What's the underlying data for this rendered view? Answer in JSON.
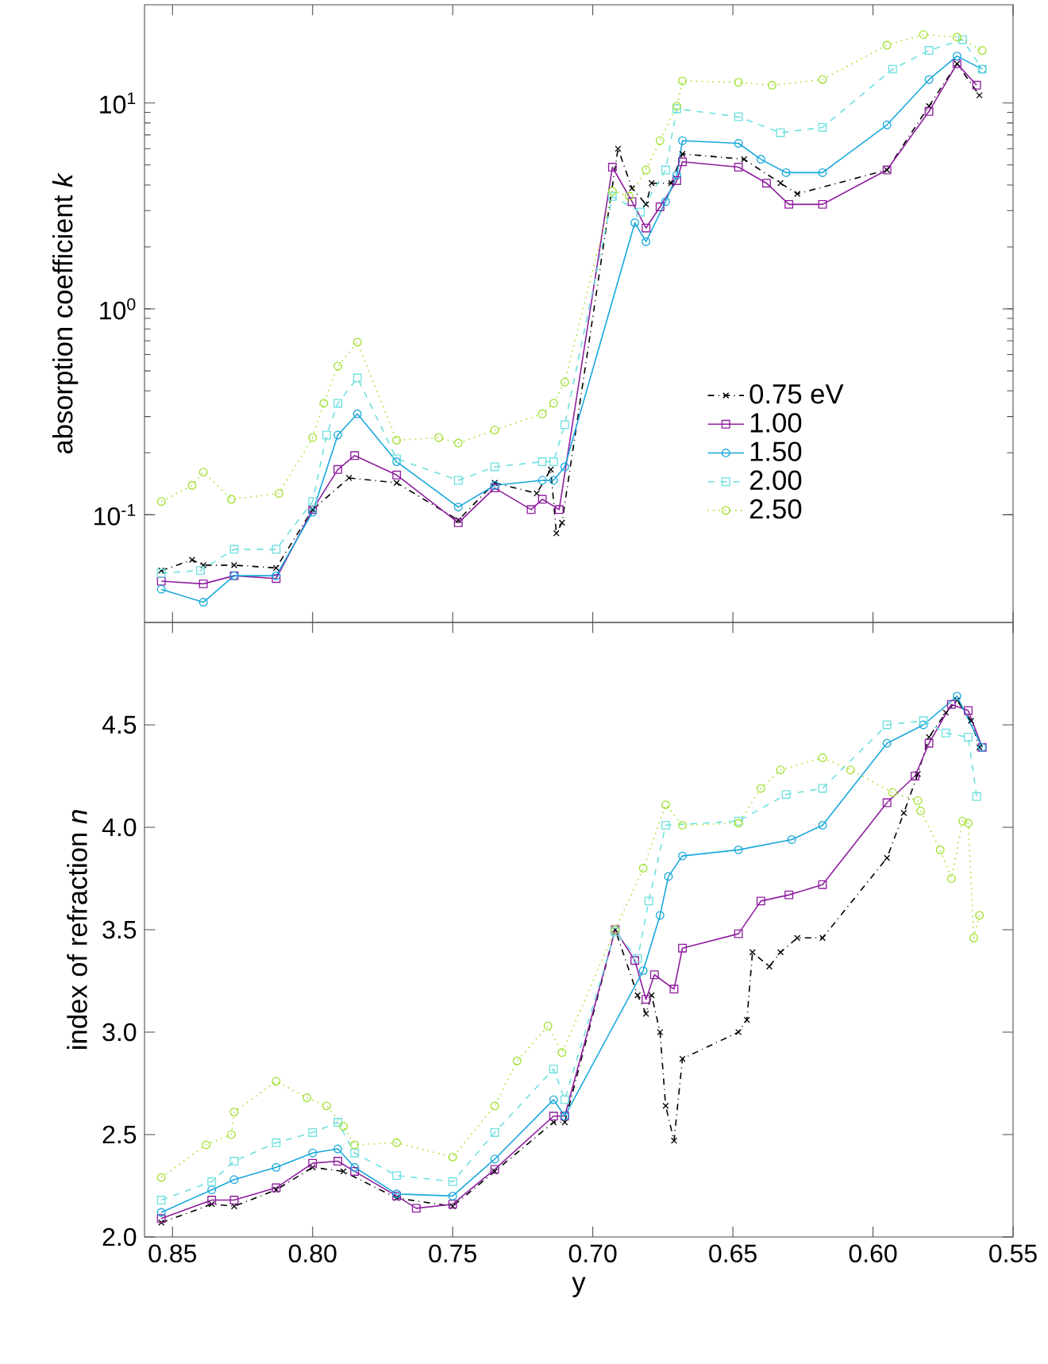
{
  "chart_data": [
    {
      "type": "line",
      "ylabel": "absorption coefficient *k*",
      "log": "y",
      "legend": "right",
      "tick_labels": "y",
      "xlim": [
        0.86,
        0.55
      ],
      "ylim": [
        0.03,
        30
      ],
      "xticks": [
        {
          "value": 0.85,
          "label": null
        },
        {
          "value": 0.8,
          "label": null
        },
        {
          "value": 0.75,
          "label": null
        },
        {
          "value": 0.7,
          "label": null
        },
        {
          "value": 0.65,
          "label": null
        },
        {
          "value": 0.6,
          "label": null
        },
        {
          "value": 0.55,
          "label": null
        }
      ],
      "yticks": [
        {
          "value": 0.1,
          "label": "10$^{-1}$"
        },
        {
          "value": 1,
          "label": "10$^{0}$"
        },
        {
          "value": 10,
          "label": "10$^{1}$"
        }
      ],
      "series": [
        {
          "name": "0.75 eV",
          "color": "#000000",
          "marker": "cross",
          "line_style": "dashdot",
          "x": [
            0.854,
            0.843,
            0.839,
            0.828,
            0.813,
            0.8,
            0.787,
            0.77,
            0.748,
            0.735,
            0.72,
            0.715,
            0.713,
            0.711,
            0.691,
            0.686,
            0.681,
            0.679,
            0.672,
            0.668,
            0.646,
            0.633,
            0.627,
            0.595,
            0.58,
            0.57,
            0.562
          ],
          "values": [
            0.0536,
            0.0604,
            0.0569,
            0.0569,
            0.0552,
            0.106,
            0.151,
            0.143,
            0.0942,
            0.143,
            0.127,
            0.166,
            0.0813,
            0.0915,
            6.0,
            3.85,
            3.22,
            4.08,
            4.08,
            5.66,
            5.33,
            4.08,
            3.62,
            4.73,
            9.66,
            15.5,
            10.9
          ]
        },
        {
          "name": "1.00",
          "color": "#8e1f9e",
          "marker": "square",
          "line_style": "solid",
          "x": [
            0.854,
            0.839,
            0.828,
            0.813,
            0.8,
            0.791,
            0.785,
            0.77,
            0.748,
            0.735,
            0.722,
            0.718,
            0.712,
            0.693,
            0.686,
            0.681,
            0.676,
            0.67,
            0.668,
            0.648,
            0.638,
            0.63,
            0.618,
            0.595,
            0.58,
            0.57,
            0.563
          ],
          "values": [
            0.0476,
            0.0462,
            0.0506,
            0.049,
            0.106,
            0.166,
            0.194,
            0.156,
            0.0915,
            0.135,
            0.106,
            0.119,
            0.106,
            4.88,
            3.32,
            2.47,
            3.13,
            4.2,
            5.18,
            4.88,
            4.08,
            3.22,
            3.22,
            4.73,
            9.1,
            15.5,
            12.2
          ]
        },
        {
          "name": "1.50",
          "color": "#1aa8dc",
          "marker": "circle",
          "line_style": "solid",
          "x": [
            0.854,
            0.839,
            0.828,
            0.813,
            0.8,
            0.791,
            0.784,
            0.77,
            0.748,
            0.735,
            0.718,
            0.714,
            0.71,
            0.693,
            0.685,
            0.681,
            0.674,
            0.67,
            0.668,
            0.648,
            0.64,
            0.631,
            0.618,
            0.595,
            0.58,
            0.57,
            0.561
          ],
          "values": [
            0.0435,
            0.0376,
            0.0506,
            0.0506,
            0.103,
            0.244,
            0.309,
            0.181,
            0.109,
            0.139,
            0.147,
            0.147,
            0.171,
            null,
            2.62,
            2.12,
            3.32,
            4.46,
            6.56,
            6.37,
            5.33,
            4.59,
            4.59,
            7.83,
            13.0,
            16.9,
            14.6
          ]
        },
        {
          "name": "2.00",
          "color": "#70e0e0",
          "marker": "square",
          "line_style": "dashed",
          "x": [
            0.854,
            0.84,
            0.828,
            0.813,
            0.8,
            0.795,
            0.791,
            0.784,
            0.77,
            0.748,
            0.735,
            0.718,
            0.714,
            0.71,
            0.693,
            0.683,
            0.674,
            0.67,
            0.648,
            0.633,
            0.618,
            0.593,
            0.58,
            0.568,
            0.561
          ],
          "values": [
            0.052,
            0.0536,
            0.068,
            0.068,
            0.116,
            0.244,
            0.348,
            0.462,
            0.187,
            0.147,
            0.171,
            0.181,
            0.181,
            0.274,
            3.52,
            2.95,
            4.73,
            9.38,
            8.57,
            7.17,
            7.61,
            14.6,
            18.0,
            20.3,
            14.6
          ]
        },
        {
          "name": "2.50",
          "color": "#a0e030",
          "marker": "circle",
          "line_style": "dotted",
          "x": [
            0.854,
            0.843,
            0.839,
            0.829,
            0.812,
            0.8,
            0.796,
            0.791,
            0.784,
            0.77,
            0.755,
            0.748,
            0.735,
            0.718,
            0.714,
            0.71,
            0.693,
            0.687,
            0.681,
            0.676,
            0.67,
            0.668,
            0.648,
            0.636,
            0.618,
            0.595,
            0.582,
            0.57,
            0.561
          ],
          "values": [
            0.116,
            0.139,
            0.161,
            0.119,
            0.127,
            0.237,
            0.348,
            0.527,
            0.689,
            0.23,
            0.237,
            0.223,
            0.258,
            0.309,
            0.348,
            0.441,
            3.73,
            3.52,
            4.73,
            6.56,
            9.66,
            12.8,
            12.6,
            12.2,
            13.0,
            19.1,
            21.5,
            20.9,
            18.0
          ]
        }
      ]
    },
    {
      "type": "line",
      "xlabel": "y",
      "ylabel": "index of refraction *n*",
      "xlim": [
        0.86,
        0.55
      ],
      "ylim": [
        2.0,
        5.0
      ],
      "xticks": [
        {
          "value": 0.85,
          "label": "0.85"
        },
        {
          "value": 0.8,
          "label": "0.80"
        },
        {
          "value": 0.75,
          "label": "0.75"
        },
        {
          "value": 0.7,
          "label": "0.70"
        },
        {
          "value": 0.65,
          "label": "0.65"
        },
        {
          "value": 0.6,
          "label": "0.60"
        },
        {
          "value": 0.55,
          "label": "0.55"
        }
      ],
      "yticks": [
        {
          "value": 2,
          "label": "2.0"
        },
        {
          "value": 2.5,
          "label": "2.5"
        },
        {
          "value": 3,
          "label": "3.0"
        },
        {
          "value": 3.5,
          "label": "3.5"
        },
        {
          "value": 4,
          "label": "4.0"
        },
        {
          "value": 4.5,
          "label": "4.5"
        }
      ],
      "series": [
        {
          "color": "#000000",
          "marker": "cross",
          "line_style": "dashdot",
          "x": [
            0.854,
            0.836,
            0.828,
            0.813,
            0.8,
            0.789,
            0.77,
            0.75,
            0.735,
            0.714,
            0.71,
            0.692,
            0.684,
            0.681,
            0.679,
            0.676,
            0.674,
            0.671,
            0.668,
            0.648,
            0.645,
            0.643,
            0.637,
            0.633,
            0.627,
            0.618,
            0.595,
            0.589,
            0.584,
            0.58,
            0.574,
            0.57,
            0.565,
            0.562
          ],
          "values": [
            2.07,
            2.16,
            2.15,
            2.23,
            2.34,
            2.32,
            2.19,
            2.15,
            2.32,
            2.56,
            2.56,
            3.5,
            3.18,
            3.09,
            3.18,
            3.0,
            2.64,
            2.47,
            2.87,
            3.0,
            3.06,
            3.39,
            3.32,
            3.39,
            3.46,
            3.46,
            3.85,
            4.07,
            4.26,
            4.44,
            4.56,
            4.62,
            4.52,
            4.39
          ]
        },
        {
          "color": "#8e1f9e",
          "marker": "square",
          "line_style": "solid",
          "x": [
            0.854,
            0.836,
            0.828,
            0.813,
            0.8,
            0.791,
            0.785,
            0.77,
            0.763,
            0.75,
            0.735,
            0.714,
            0.71,
            0.692,
            0.685,
            0.681,
            0.678,
            0.671,
            0.668,
            0.648,
            0.64,
            0.63,
            0.618,
            0.595,
            0.585,
            0.58,
            0.572,
            0.566,
            0.561
          ],
          "values": [
            2.09,
            2.18,
            2.18,
            2.24,
            2.36,
            2.37,
            2.32,
            2.2,
            2.14,
            2.16,
            2.33,
            2.59,
            2.59,
            3.5,
            3.35,
            3.16,
            3.28,
            3.21,
            3.41,
            3.48,
            3.64,
            3.67,
            3.72,
            4.12,
            4.25,
            4.41,
            4.6,
            4.57,
            4.39
          ]
        },
        {
          "color": "#1aa8dc",
          "marker": "circle",
          "line_style": "solid",
          "x": [
            0.854,
            0.836,
            0.828,
            0.813,
            0.8,
            0.791,
            0.785,
            0.77,
            0.75,
            0.735,
            0.714,
            0.71,
            0.692,
            0.682,
            0.676,
            0.673,
            0.668,
            0.648,
            0.629,
            0.618,
            0.595,
            0.582,
            0.57,
            0.561
          ],
          "values": [
            2.12,
            2.23,
            2.28,
            2.34,
            2.41,
            2.43,
            2.34,
            2.21,
            2.2,
            2.38,
            2.67,
            2.59,
            null,
            3.3,
            3.57,
            3.76,
            3.86,
            3.89,
            3.94,
            4.01,
            4.41,
            4.5,
            4.64,
            4.39
          ]
        },
        {
          "color": "#70e0e0",
          "marker": "square",
          "line_style": "dashed",
          "x": [
            0.854,
            0.836,
            0.828,
            0.813,
            0.8,
            0.791,
            0.785,
            0.77,
            0.75,
            0.735,
            0.714,
            0.71,
            0.692,
            0.684,
            0.68,
            0.674,
            0.648,
            0.631,
            0.618,
            0.595,
            0.582,
            0.574,
            0.566,
            0.563
          ],
          "values": [
            2.18,
            2.27,
            2.37,
            2.46,
            2.51,
            2.56,
            2.41,
            2.3,
            2.27,
            2.51,
            2.82,
            2.67,
            3.49,
            3.36,
            3.64,
            4.01,
            4.03,
            4.16,
            4.19,
            4.5,
            4.52,
            4.46,
            4.44,
            4.15
          ]
        },
        {
          "color": "#a0e030",
          "marker": "circle",
          "line_style": "dotted",
          "x": [
            0.854,
            0.838,
            0.829,
            0.828,
            0.813,
            0.802,
            0.795,
            0.789,
            0.785,
            0.77,
            0.75,
            0.735,
            0.727,
            0.716,
            0.711,
            0.692,
            0.682,
            0.674,
            0.668,
            0.648,
            0.64,
            0.633,
            0.618,
            0.608,
            0.593,
            0.584,
            0.583,
            0.576,
            0.572,
            0.568,
            0.566,
            0.564,
            0.562
          ],
          "values": [
            2.29,
            2.45,
            2.5,
            2.61,
            2.76,
            2.68,
            2.64,
            2.54,
            2.45,
            2.46,
            2.39,
            2.64,
            2.86,
            3.03,
            2.9,
            3.5,
            3.8,
            4.11,
            4.01,
            4.02,
            4.19,
            4.28,
            4.34,
            4.28,
            4.17,
            4.13,
            4.08,
            3.89,
            3.75,
            4.03,
            4.02,
            3.46,
            3.57
          ]
        }
      ]
    }
  ]
}
